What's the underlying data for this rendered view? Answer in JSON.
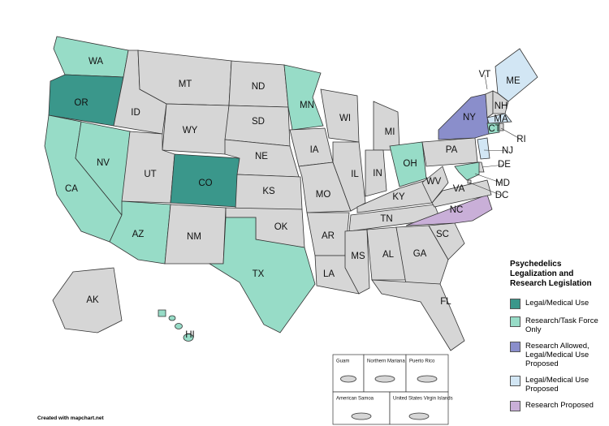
{
  "map": {
    "title": "Psychedelics Legalization and Research Legislation",
    "default_color": "#d6d6d6",
    "legend": [
      {
        "label": "Legal/Medical Use",
        "color": "#3a978b"
      },
      {
        "label": "Research/Task Force Only",
        "color": "#97dcc7"
      },
      {
        "label": "Research Allowed, Legal/Medical Use Proposed",
        "color": "#8a8ecb"
      },
      {
        "label": "Legal/Medical Use Proposed",
        "color": "#d2e6f4"
      },
      {
        "label": "Research Proposed",
        "color": "#c9afd8"
      }
    ],
    "states": [
      {
        "label": "WA",
        "category": 1
      },
      {
        "label": "OR",
        "category": 0
      },
      {
        "label": "CA",
        "category": 1
      },
      {
        "label": "NV",
        "category": 1
      },
      {
        "label": "ID",
        "category": null
      },
      {
        "label": "MT",
        "category": null
      },
      {
        "label": "WY",
        "category": null
      },
      {
        "label": "UT",
        "category": null
      },
      {
        "label": "CO",
        "category": 0
      },
      {
        "label": "AZ",
        "category": 1
      },
      {
        "label": "NM",
        "category": null
      },
      {
        "label": "ND",
        "category": null
      },
      {
        "label": "SD",
        "category": null
      },
      {
        "label": "NE",
        "category": null
      },
      {
        "label": "KS",
        "category": null
      },
      {
        "label": "OK",
        "category": null
      },
      {
        "label": "TX",
        "category": 1
      },
      {
        "label": "MN",
        "category": 1
      },
      {
        "label": "IA",
        "category": null
      },
      {
        "label": "MO",
        "category": null
      },
      {
        "label": "AR",
        "category": null
      },
      {
        "label": "LA",
        "category": null
      },
      {
        "label": "WI",
        "category": null
      },
      {
        "label": "IL",
        "category": null
      },
      {
        "label": "MI",
        "category": null
      },
      {
        "label": "IN",
        "category": null
      },
      {
        "label": "OH",
        "category": 1
      },
      {
        "label": "KY",
        "category": null
      },
      {
        "label": "TN",
        "category": null
      },
      {
        "label": "MS",
        "category": null
      },
      {
        "label": "AL",
        "category": null
      },
      {
        "label": "GA",
        "category": null
      },
      {
        "label": "FL",
        "category": null
      },
      {
        "label": "SC",
        "category": null
      },
      {
        "label": "NC",
        "category": 4
      },
      {
        "label": "VA",
        "category": null
      },
      {
        "label": "WV",
        "category": null
      },
      {
        "label": "PA",
        "category": null
      },
      {
        "label": "NY",
        "category": 2
      },
      {
        "label": "ME",
        "category": 3
      },
      {
        "label": "VT",
        "category": null
      },
      {
        "label": "NH",
        "category": null
      },
      {
        "label": "MA",
        "category": 3
      },
      {
        "label": "CT",
        "category": 1
      },
      {
        "label": "RI",
        "category": null
      },
      {
        "label": "NJ",
        "category": 3
      },
      {
        "label": "DE",
        "category": null
      },
      {
        "label": "MD",
        "category": 1
      },
      {
        "label": "DC",
        "category": null
      },
      {
        "label": "AK",
        "category": null
      },
      {
        "label": "HI",
        "category": 1
      }
    ],
    "territories": [
      "Guam",
      "Northern Mariana Islands",
      "Puerto Rico",
      "American Samoa",
      "United States Virgin Islands"
    ],
    "credit": "Created with mapchart.net"
  }
}
